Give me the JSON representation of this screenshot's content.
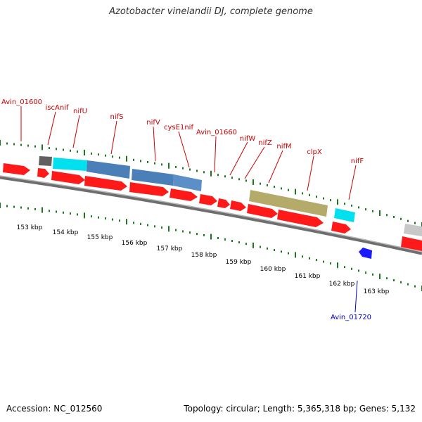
{
  "title": "Azotobacter vinelandii DJ, complete genome",
  "footer": {
    "accession": "Accession: NC_012560",
    "summary": "Topology: circular; Length: 5,365,318 bp; Genes: 5,132"
  },
  "colors": {
    "forward_cds": "#ff1a1a",
    "reverse_cds": "#1a1aff",
    "gene_label_top": "#cc0000",
    "gene_label_bottom": "#0000cc",
    "tick": "#1a7a1a",
    "backbone": "#8c8c8c"
  },
  "scale_labels": [
    "153 kbp",
    "154 kbp",
    "155 kbp",
    "156 kbp",
    "157 kbp",
    "158 kbp",
    "159 kbp",
    "160 kbp",
    "161 kbp",
    "162 kbp",
    "163 kbp"
  ],
  "gene_labels_top": [
    "Avin_01600",
    "iscAnif",
    "nifU",
    "nifS",
    "nifV",
    "cysE1nif",
    "Avin_01660",
    "nifW",
    "nifZ",
    "nifM",
    "clpX",
    "nifF"
  ],
  "gene_labels_bottom": [
    "Avin_01720"
  ]
}
